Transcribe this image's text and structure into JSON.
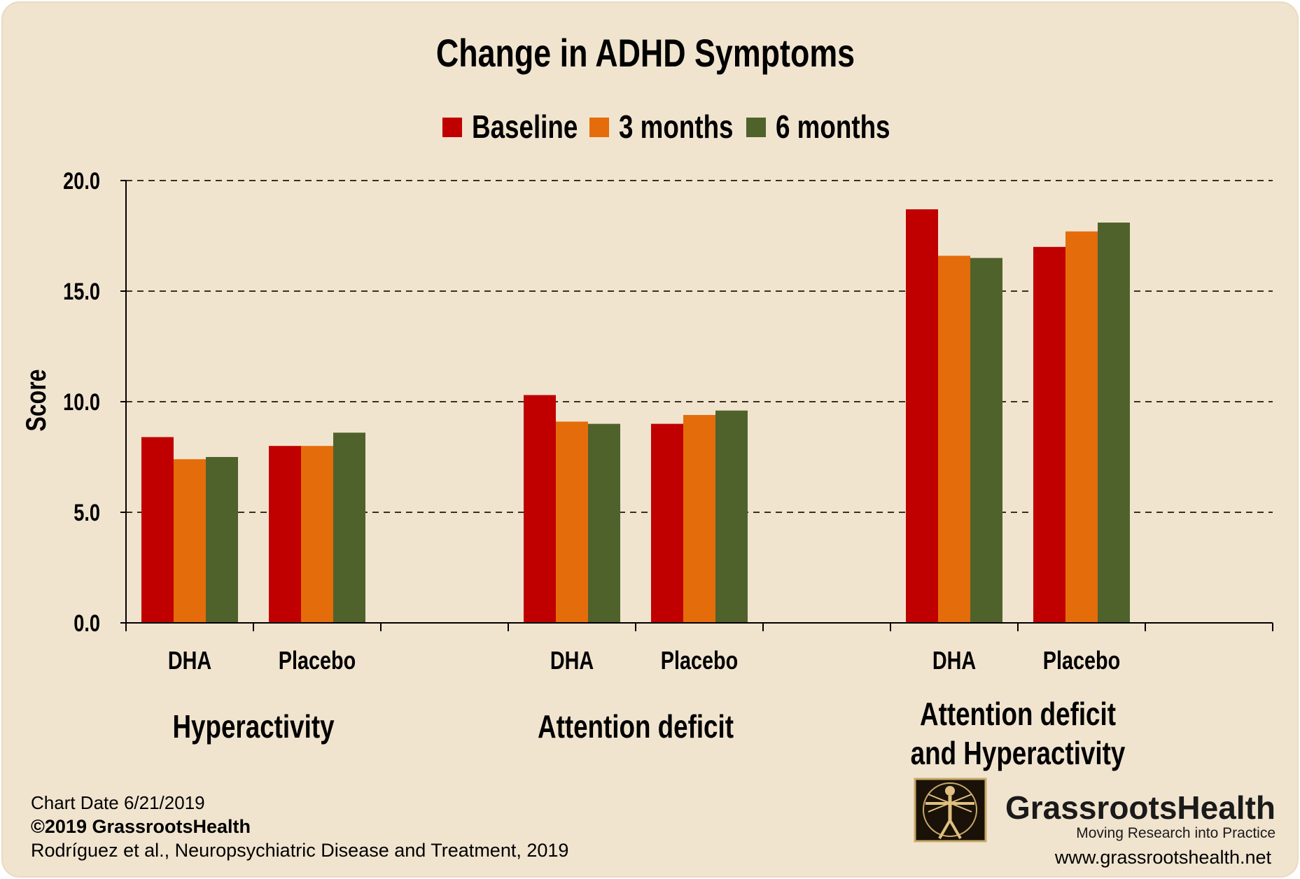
{
  "chart_data": {
    "type": "bar",
    "title": "Change in ADHD Symptoms",
    "ylabel": "Score",
    "ylim": [
      0,
      20
    ],
    "yticks": [
      "0.0",
      "5.0",
      "10.0",
      "15.0",
      "20.0"
    ],
    "grid": "horizontal dashed",
    "legend_position": "top",
    "colors": {
      "Baseline": "#c00000",
      "3 months": "#e46c0a",
      "6 months": "#4f622b"
    },
    "series_names": [
      "Baseline",
      "3 months",
      "6 months"
    ],
    "groups": [
      {
        "label_lines": [
          "Hyperactivity"
        ],
        "categories": [
          {
            "label": "DHA",
            "values": [
              8.4,
              7.4,
              7.5
            ]
          },
          {
            "label": "Placebo",
            "values": [
              8.0,
              8.0,
              8.6
            ]
          }
        ]
      },
      {
        "label_lines": [
          "Attention deficit"
        ],
        "categories": [
          {
            "label": "DHA",
            "values": [
              10.3,
              9.1,
              9.0
            ]
          },
          {
            "label": "Placebo",
            "values": [
              9.0,
              9.4,
              9.6
            ]
          }
        ]
      },
      {
        "label_lines": [
          "Attention deficit",
          "and Hyperactivity"
        ],
        "categories": [
          {
            "label": "DHA",
            "values": [
              18.7,
              16.6,
              16.5
            ]
          },
          {
            "label": "Placebo",
            "values": [
              17.0,
              17.7,
              18.1
            ]
          }
        ]
      }
    ]
  },
  "footer": {
    "chart_date": "Chart Date 6/21/2019",
    "copyright": "©2019 GrassrootsHealth",
    "citation": "Rodríguez et al., Neuropsychiatric Disease and Treatment, 2019"
  },
  "brand": {
    "name": "GrassrootsHealth",
    "tagline": "Moving Research into Practice",
    "url": "www.grassrootshealth.net",
    "logo_icon": "vitruvian-man-icon"
  }
}
